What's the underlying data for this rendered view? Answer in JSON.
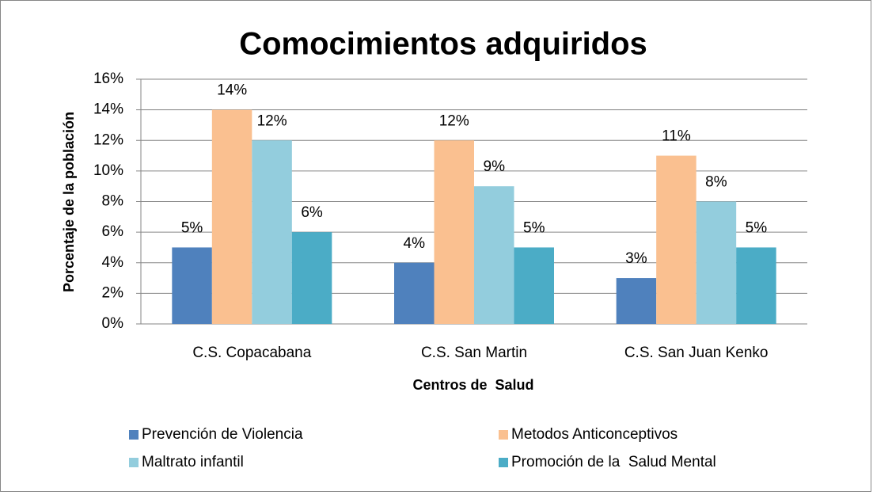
{
  "chart_data": {
    "type": "bar",
    "title": "Comocimientos adquiridos",
    "x_label": "Centros de  Salud",
    "y_label": "Porcentaje de la población",
    "categories": [
      "C.S. Copacabana",
      "C.S. San Martin",
      "C.S. San Juan Kenko"
    ],
    "series": [
      {
        "name": "Prevención de Violencia",
        "color": "#4f81bd",
        "values": [
          5,
          4,
          3
        ],
        "value_labels": [
          "5%",
          "4%",
          "3%"
        ]
      },
      {
        "name": "Metodos Anticonceptivos",
        "color": "#fac090",
        "values": [
          14,
          12,
          11
        ],
        "value_labels": [
          "14%",
          "12%",
          "11%"
        ]
      },
      {
        "name": "Maltrato infantil",
        "color": "#93cddd",
        "values": [
          12,
          9,
          8
        ],
        "value_labels": [
          "12%",
          "9%",
          "8%"
        ]
      },
      {
        "name": "Promoción de la  Salud Mental",
        "color": "#4bacc6",
        "values": [
          6,
          5,
          5
        ],
        "value_labels": [
          "6%",
          "5%",
          "5%"
        ]
      }
    ],
    "ylim": [
      0,
      16
    ],
    "yticks": [
      {
        "value": 0,
        "label": "0%"
      },
      {
        "value": 2,
        "label": "2%"
      },
      {
        "value": 4,
        "label": "4%"
      },
      {
        "value": 6,
        "label": "6%"
      },
      {
        "value": 8,
        "label": "8%"
      },
      {
        "value": 10,
        "label": "10%"
      },
      {
        "value": 12,
        "label": "12%"
      },
      {
        "value": 14,
        "label": "14%"
      },
      {
        "value": 16,
        "label": "16%"
      }
    ],
    "grid": true,
    "legend": "bottom"
  }
}
